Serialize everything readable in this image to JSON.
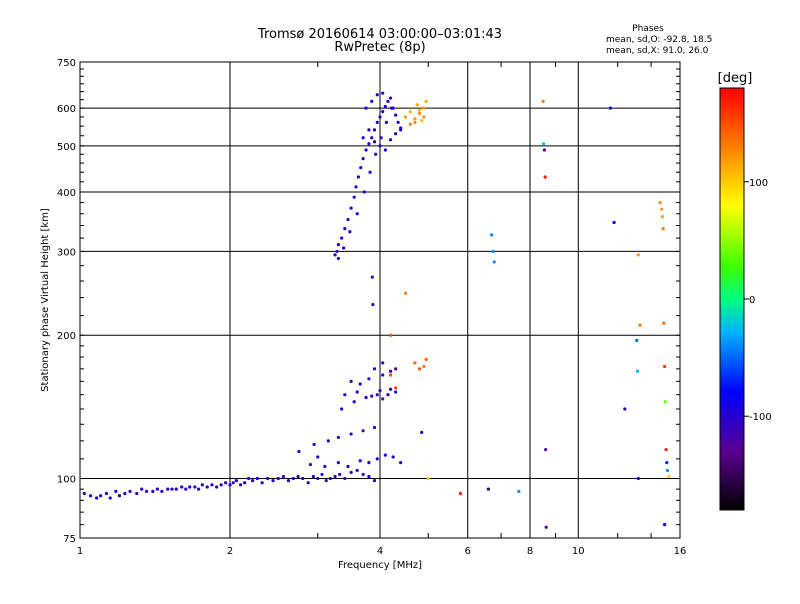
{
  "chart_data": {
    "type": "scatter",
    "title": "Tromsø 20160614 03:00:00–03:01:43",
    "subtitle": "RwPretec (8p)",
    "phases_title": "Phases",
    "phases_line1": "mean, sd,O: -92.8, 18.5",
    "phases_line2": "mean, sd,X:  91.0, 26.0",
    "xlabel": "Frequency [MHz]",
    "ylabel": "Stationary phase Virtual Height [km]",
    "x_scale": "log",
    "y_scale": "log",
    "xlim": [
      1,
      16
    ],
    "ylim": [
      75,
      750
    ],
    "x_ticks": [
      1,
      2,
      4,
      6,
      8,
      10,
      16
    ],
    "x_tick_labels": [
      "1",
      "2",
      "4",
      "6",
      "8",
      "10",
      "16"
    ],
    "y_ticks": [
      75,
      100,
      200,
      300,
      400,
      500,
      600,
      750
    ],
    "y_tick_labels": [
      "75",
      "100",
      "200",
      "300",
      "400",
      "500",
      "600",
      "750"
    ],
    "grid": true,
    "colorbar": {
      "label": "[deg]",
      "range": [
        -180,
        180
      ],
      "ticks": [
        100,
        0,
        -100
      ],
      "tick_labels": [
        "100",
        "0",
        "-100"
      ]
    },
    "series": [
      {
        "points": [
          [
            1.02,
            93,
            -100
          ],
          [
            1.05,
            92,
            -105
          ],
          [
            1.08,
            91,
            -95
          ],
          [
            1.1,
            92,
            -110
          ],
          [
            1.13,
            93,
            -98
          ],
          [
            1.15,
            91,
            -102
          ],
          [
            1.18,
            94,
            -100
          ],
          [
            1.2,
            92,
            -108
          ],
          [
            1.23,
            93,
            -96
          ],
          [
            1.26,
            94,
            -104
          ],
          [
            1.3,
            93,
            -100
          ],
          [
            1.33,
            95,
            -99
          ],
          [
            1.36,
            94,
            -107
          ],
          [
            1.4,
            94,
            -100
          ],
          [
            1.43,
            95,
            -95
          ],
          [
            1.46,
            94,
            -103
          ],
          [
            1.5,
            95,
            -100
          ],
          [
            1.53,
            95,
            -110
          ],
          [
            1.56,
            95,
            -98
          ],
          [
            1.6,
            96,
            -100
          ],
          [
            1.63,
            95,
            -102
          ],
          [
            1.66,
            96,
            -97
          ],
          [
            1.7,
            96,
            -104
          ],
          [
            1.73,
            95,
            -100
          ],
          [
            1.76,
            97,
            -96
          ],
          [
            1.8,
            96,
            -101
          ],
          [
            1.84,
            97,
            -100
          ],
          [
            1.88,
            96,
            -99
          ],
          [
            1.92,
            97,
            -108
          ],
          [
            1.96,
            98,
            -100
          ],
          [
            2.0,
            97,
            -95
          ],
          [
            2.03,
            98,
            -103
          ],
          [
            2.06,
            99,
            -100
          ],
          [
            2.1,
            97,
            -110
          ],
          [
            2.14,
            98,
            -98
          ],
          [
            2.18,
            100,
            -100
          ],
          [
            2.22,
            99,
            -104
          ],
          [
            2.27,
            100,
            -97
          ],
          [
            2.32,
            98,
            -100
          ],
          [
            2.38,
            100,
            -102
          ],
          [
            2.44,
            99,
            -96
          ],
          [
            2.5,
            100,
            -100
          ],
          [
            2.56,
            101,
            -105
          ],
          [
            2.62,
            99,
            -98
          ],
          [
            2.68,
            100,
            -100
          ],
          [
            2.74,
            101,
            -100
          ],
          [
            2.8,
            100,
            -95
          ],
          [
            2.87,
            98,
            -102
          ],
          [
            2.94,
            101,
            -100
          ],
          [
            3.0,
            100,
            -100
          ],
          [
            3.06,
            102,
            -98
          ],
          [
            3.12,
            99,
            -104
          ],
          [
            3.18,
            100,
            -100
          ],
          [
            3.25,
            101,
            -110
          ],
          [
            3.32,
            102,
            -100
          ],
          [
            3.4,
            100,
            -120
          ],
          [
            3.5,
            103,
            -110
          ],
          [
            3.6,
            104,
            -105
          ],
          [
            3.7,
            102,
            -100
          ],
          [
            3.8,
            101,
            -96
          ],
          [
            3.9,
            99,
            -100
          ],
          [
            2.9,
            107,
            -100
          ],
          [
            3.0,
            111,
            -104
          ],
          [
            3.1,
            106,
            -98
          ],
          [
            3.3,
            108,
            -100
          ],
          [
            3.45,
            106,
            -102
          ],
          [
            3.65,
            109,
            -100
          ],
          [
            3.8,
            108,
            -97
          ],
          [
            3.95,
            110,
            -95
          ],
          [
            4.1,
            112,
            -100
          ],
          [
            4.25,
            111,
            -99
          ],
          [
            4.4,
            108,
            -103
          ],
          [
            2.75,
            114,
            -100
          ],
          [
            2.95,
            118,
            -98
          ],
          [
            3.15,
            120,
            -100
          ],
          [
            3.3,
            122,
            -103
          ],
          [
            3.5,
            124,
            -100
          ],
          [
            3.7,
            126,
            -130
          ],
          [
            3.9,
            128,
            -100
          ],
          [
            3.35,
            140,
            -100
          ],
          [
            3.55,
            145,
            -98
          ],
          [
            3.75,
            148,
            -100
          ],
          [
            3.95,
            150,
            -102
          ],
          [
            4.15,
            150,
            -100
          ],
          [
            4.3,
            152,
            -97
          ],
          [
            3.4,
            150,
            -100
          ],
          [
            3.6,
            152,
            -100
          ],
          [
            3.85,
            149,
            -96
          ],
          [
            4.0,
            153,
            -100
          ],
          [
            4.2,
            154,
            -100
          ],
          [
            3.5,
            160,
            -103
          ],
          [
            3.65,
            158,
            -100
          ],
          [
            3.8,
            162,
            -100
          ],
          [
            4.05,
            165,
            -98
          ],
          [
            4.2,
            168,
            -100
          ],
          [
            3.9,
            170,
            -100
          ],
          [
            4.05,
            175,
            -102
          ],
          [
            3.25,
            295,
            -100
          ],
          [
            3.28,
            300,
            -105
          ],
          [
            3.3,
            310,
            -100
          ],
          [
            3.35,
            320,
            -98
          ],
          [
            3.4,
            335,
            -100
          ],
          [
            3.45,
            350,
            -103
          ],
          [
            3.5,
            370,
            -100
          ],
          [
            3.55,
            390,
            -96
          ],
          [
            3.58,
            410,
            -100
          ],
          [
            3.62,
            430,
            -100
          ],
          [
            3.66,
            450,
            -104
          ],
          [
            3.7,
            470,
            -100
          ],
          [
            3.75,
            490,
            -98
          ],
          [
            3.8,
            505,
            -100
          ],
          [
            3.85,
            520,
            -110
          ],
          [
            3.9,
            540,
            -100
          ],
          [
            3.95,
            560,
            -102
          ],
          [
            4.0,
            575,
            -100
          ],
          [
            4.05,
            590,
            -97
          ],
          [
            4.1,
            605,
            -100
          ],
          [
            4.15,
            620,
            -100
          ],
          [
            4.2,
            630,
            -103
          ],
          [
            4.25,
            600,
            -100
          ],
          [
            4.3,
            580,
            -98
          ],
          [
            4.35,
            560,
            -100
          ],
          [
            4.4,
            540,
            -100
          ],
          [
            3.3,
            290,
            -100
          ],
          [
            3.38,
            305,
            -95
          ],
          [
            3.48,
            330,
            -100
          ],
          [
            3.6,
            360,
            -100
          ],
          [
            3.72,
            400,
            -102
          ],
          [
            3.82,
            440,
            -100
          ],
          [
            3.92,
            480,
            -98
          ],
          [
            4.02,
            520,
            -100
          ],
          [
            4.12,
            560,
            -105
          ],
          [
            4.22,
            600,
            -100
          ],
          [
            3.7,
            520,
            -100
          ],
          [
            3.8,
            540,
            -102
          ],
          [
            3.9,
            510,
            -100
          ],
          [
            4.0,
            500,
            -98
          ],
          [
            4.1,
            490,
            -100
          ],
          [
            4.2,
            515,
            -100
          ],
          [
            4.3,
            530,
            -103
          ],
          [
            4.4,
            545,
            -100
          ],
          [
            3.75,
            600,
            -100
          ],
          [
            3.85,
            620,
            -98
          ],
          [
            3.95,
            640,
            -100
          ],
          [
            4.05,
            645,
            -102
          ],
          [
            3.86,
            265,
            -110
          ],
          [
            3.87,
            232,
            -105
          ],
          [
            4.85,
            125,
            -100
          ],
          [
            4.3,
            170,
            -120
          ],
          [
            4.05,
            147,
            -130
          ]
        ]
      },
      {
        "points": [
          [
            4.5,
            575,
            120
          ],
          [
            4.6,
            590,
            110
          ],
          [
            4.7,
            560,
            130
          ],
          [
            4.75,
            610,
            115
          ],
          [
            4.8,
            585,
            125
          ],
          [
            4.85,
            565,
            105
          ],
          [
            4.9,
            600,
            120
          ],
          [
            4.95,
            620,
            112
          ],
          [
            4.6,
            555,
            128
          ],
          [
            4.7,
            570,
            118
          ],
          [
            4.8,
            595,
            110
          ],
          [
            4.9,
            575,
            125
          ],
          [
            4.2,
            200,
            150
          ],
          [
            4.5,
            245,
            130
          ],
          [
            4.7,
            175,
            140
          ],
          [
            4.8,
            170,
            145
          ],
          [
            4.9,
            172,
            135
          ],
          [
            4.95,
            178,
            140
          ],
          [
            4.2,
            165,
            150
          ],
          [
            4.3,
            155,
            155
          ],
          [
            5.0,
            100,
            100
          ],
          [
            5.8,
            93,
            170
          ],
          [
            6.6,
            95,
            -150
          ],
          [
            7.6,
            94,
            -40
          ],
          [
            6.7,
            325,
            -40
          ],
          [
            6.75,
            300,
            -40
          ],
          [
            6.78,
            285,
            -40
          ],
          [
            8.5,
            620,
            130
          ],
          [
            8.52,
            505,
            -20
          ],
          [
            8.55,
            490,
            -130
          ],
          [
            8.58,
            430,
            175
          ],
          [
            8.6,
            115,
            -120
          ],
          [
            8.62,
            79,
            -120
          ],
          [
            11.6,
            600,
            -80
          ],
          [
            11.8,
            345,
            -80
          ],
          [
            12.4,
            140,
            -110
          ],
          [
            13.2,
            295,
            120
          ],
          [
            13.3,
            210,
            130
          ],
          [
            13.1,
            195,
            -50
          ],
          [
            13.15,
            168,
            -30
          ],
          [
            13.2,
            100,
            -90
          ],
          [
            14.6,
            380,
            125
          ],
          [
            14.7,
            368,
            120
          ],
          [
            14.75,
            355,
            115
          ],
          [
            14.8,
            335,
            130
          ],
          [
            14.85,
            212,
            140
          ],
          [
            14.9,
            172,
            160
          ],
          [
            14.95,
            145,
            40
          ],
          [
            15.0,
            115,
            170
          ],
          [
            15.05,
            108,
            -70
          ],
          [
            15.1,
            104,
            -40
          ],
          [
            14.9,
            80,
            -90
          ],
          [
            15.2,
            101,
            100
          ]
        ]
      }
    ]
  }
}
